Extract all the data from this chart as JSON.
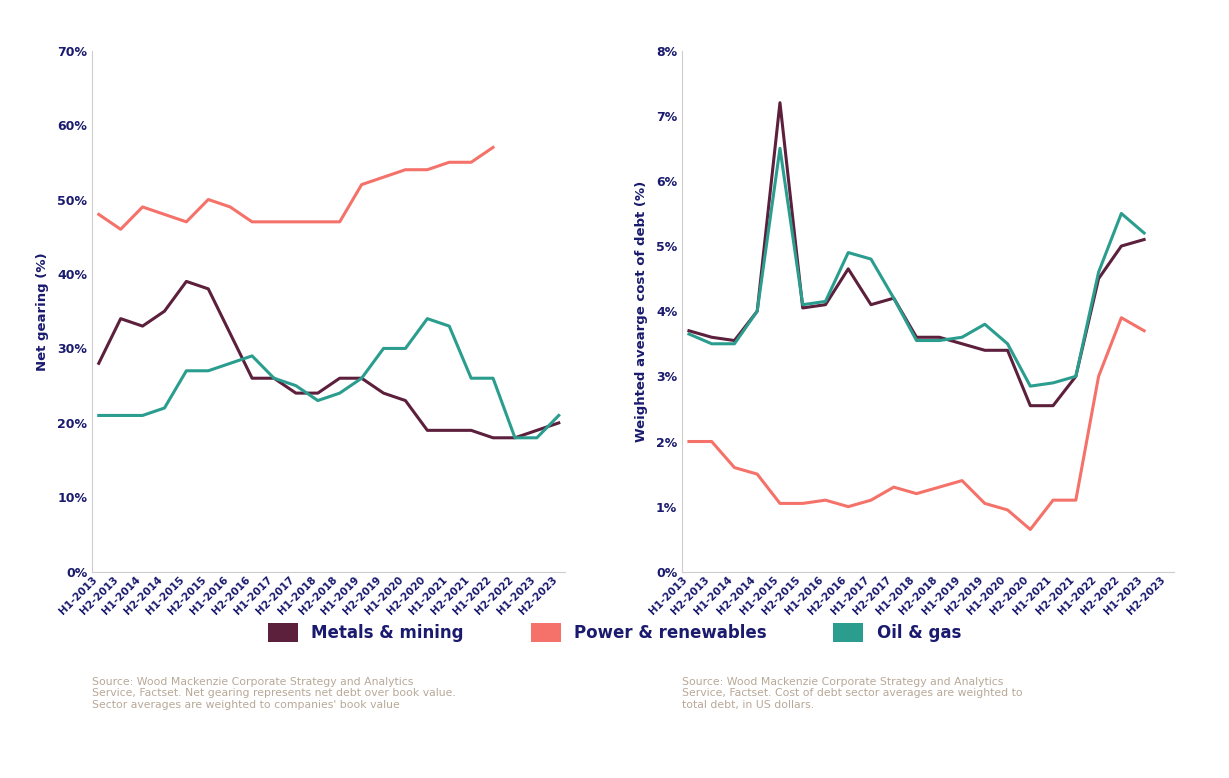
{
  "x_labels": [
    "H1-2013",
    "H2-2013",
    "H1-2014",
    "H2-2014",
    "H1-2015",
    "H2-2015",
    "H1-2016",
    "H2-2016",
    "H1-2017",
    "H2-2017",
    "H1-2018",
    "H2-2018",
    "H1-2019",
    "H2-2019",
    "H1-2020",
    "H2-2020",
    "H1-2021",
    "H2-2021",
    "H1-2022",
    "H2-2022",
    "H1-2023",
    "H2-2023"
  ],
  "gearing_metals": [
    28,
    34,
    33,
    35,
    39,
    38,
    32,
    26,
    26,
    24,
    24,
    26,
    26,
    24,
    23,
    19,
    19,
    19,
    18,
    18,
    19,
    20
  ],
  "gearing_power": [
    48,
    46,
    49,
    48,
    47,
    50,
    49,
    47,
    47,
    47,
    47,
    47,
    52,
    53,
    54,
    54,
    55,
    55,
    57,
    null,
    null,
    null
  ],
  "gearing_oil": [
    21,
    21,
    21,
    22,
    27,
    27,
    28,
    29,
    26,
    25,
    23,
    24,
    26,
    30,
    30,
    34,
    33,
    26,
    26,
    18,
    18,
    21
  ],
  "cost_metals": [
    3.7,
    3.6,
    3.55,
    4.0,
    7.2,
    4.05,
    4.1,
    4.65,
    4.1,
    4.2,
    3.6,
    3.6,
    3.5,
    3.4,
    3.4,
    2.55,
    2.55,
    3.0,
    4.5,
    5.0,
    5.1,
    null
  ],
  "cost_power": [
    2.0,
    2.0,
    1.6,
    1.5,
    1.05,
    1.05,
    1.1,
    1.0,
    1.1,
    1.3,
    1.2,
    1.3,
    1.4,
    1.05,
    0.95,
    0.65,
    1.1,
    1.1,
    3.0,
    3.9,
    3.7,
    null
  ],
  "cost_oil": [
    3.65,
    3.5,
    3.5,
    4.0,
    6.5,
    4.1,
    4.15,
    4.9,
    4.8,
    4.2,
    3.55,
    3.55,
    3.6,
    3.8,
    3.5,
    2.85,
    2.9,
    3.0,
    4.6,
    5.5,
    5.2,
    null
  ],
  "color_metals": "#5c1f3c",
  "color_power": "#f4726a",
  "color_oil": "#2a9d8f",
  "ylabel_left": "Net gearing (%)",
  "ylabel_right": "Weighted avearge cost of debt (%)",
  "source_left": "Source: Wood Mackenzie Corporate Strategy and Analytics\nService, Factset. Net gearing represents net debt over book value.\nSector averages are weighted to companies' book value",
  "source_right": "Source: Wood Mackenzie Corporate Strategy and Analytics\nService, Factset. Cost of debt sector averages are weighted to\ntotal debt, in US dollars.",
  "legend_labels": [
    "Metals & mining",
    "Power & renewables",
    "Oil & gas"
  ],
  "axis_label_color": "#1a1a6e",
  "tick_color": "#1a1a6e",
  "source_color": "#b8a898",
  "background_color": "#ffffff",
  "spine_color": "#cccccc"
}
